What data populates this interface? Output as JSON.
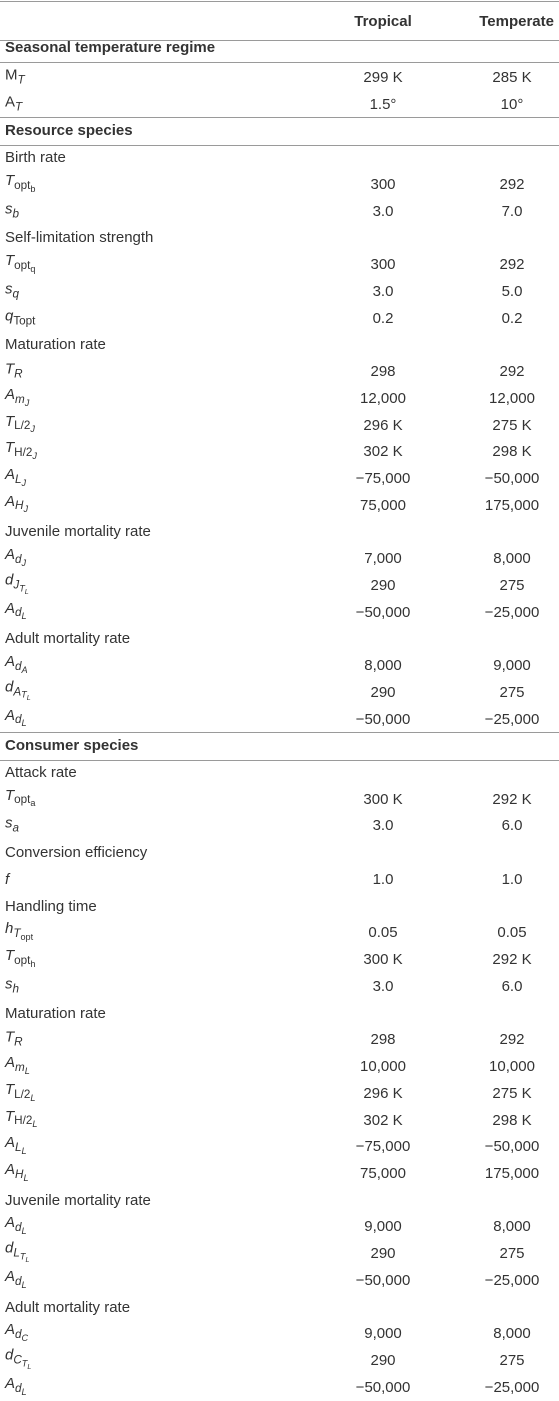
{
  "table": {
    "columns": [
      "Tropical",
      "Temperate"
    ],
    "rows": [
      {
        "section": "Seasonal temperature regime"
      },
      {
        "symbol": [
          "M",
          "T"
        ],
        "cells": [
          "299 K",
          "285 K"
        ]
      },
      {
        "symbol": [
          "A",
          "T"
        ],
        "cells": [
          "1.5°",
          "10°"
        ]
      },
      {
        "section": "Resource species"
      },
      {
        "group": "Birth rate"
      },
      {
        "symbol": [
          "T",
          "opt",
          "b"
        ],
        "cells": [
          "300",
          "292"
        ]
      },
      {
        "symbol": [
          "s",
          "b"
        ],
        "cells": [
          "3.0",
          "7.0"
        ]
      },
      {
        "group": "Self-limitation strength"
      },
      {
        "symbol": [
          "T",
          "opt",
          "q"
        ],
        "cells": [
          "300",
          "292"
        ]
      },
      {
        "symbol": [
          "s",
          "q"
        ],
        "cells": [
          "3.0",
          "5.0"
        ]
      },
      {
        "symbol": [
          "q",
          "Topt"
        ],
        "cells": [
          "0.2",
          "0.2"
        ]
      },
      {
        "group": "Maturation rate"
      },
      {
        "symbol": [
          "T",
          "R"
        ],
        "cells": [
          "298",
          "292"
        ]
      },
      {
        "symbol": [
          "A",
          "m",
          "J"
        ],
        "cells": [
          "12,000",
          "12,000"
        ]
      },
      {
        "symbol": [
          "T",
          "L/2",
          "J"
        ],
        "cells": [
          "296 K",
          "275 K"
        ]
      },
      {
        "symbol": [
          "T",
          "H/2",
          "J"
        ],
        "cells": [
          "302 K",
          "298 K"
        ]
      },
      {
        "symbol": [
          "A",
          "L",
          "J"
        ],
        "cells": [
          "−75,000",
          "−50,000"
        ]
      },
      {
        "symbol": [
          "A",
          "H",
          "J"
        ],
        "cells": [
          "75,000",
          "175,000"
        ]
      },
      {
        "group": "Juvenile mortality rate"
      },
      {
        "symbol": [
          "A",
          "d",
          "J"
        ],
        "cells": [
          "7,000",
          "8,000"
        ]
      },
      {
        "symbol": [
          "d",
          "J",
          "T",
          "L"
        ],
        "cells": [
          "290",
          "275"
        ]
      },
      {
        "symbol": [
          "A",
          "d",
          "L"
        ],
        "cells": [
          "−50,000",
          "−25,000"
        ]
      },
      {
        "group": "Adult mortality rate"
      },
      {
        "symbol": [
          "A",
          "d",
          "A"
        ],
        "cells": [
          "8,000",
          "9,000"
        ]
      },
      {
        "symbol": [
          "d",
          "A",
          "T",
          "L"
        ],
        "cells": [
          "290",
          "275"
        ]
      },
      {
        "symbol": [
          "A",
          "d",
          "L"
        ],
        "cells": [
          "−50,000",
          "−25,000"
        ]
      },
      {
        "section": "Consumer species"
      },
      {
        "group": "Attack rate"
      },
      {
        "symbol": [
          "T",
          "opt",
          "a"
        ],
        "cells": [
          "300 K",
          "292 K"
        ]
      },
      {
        "symbol": [
          "s",
          "a"
        ],
        "cells": [
          "3.0",
          "6.0"
        ]
      },
      {
        "group": "Conversion efficiency"
      },
      {
        "symbol": [
          "f"
        ],
        "cells": [
          "1.0",
          "1.0"
        ]
      },
      {
        "group": "Handling time"
      },
      {
        "symbol": [
          "h",
          "T",
          "opt"
        ],
        "cells": [
          "0.05",
          "0.05"
        ]
      },
      {
        "symbol": [
          "T",
          "opt",
          "h"
        ],
        "cells": [
          "300 K",
          "292 K"
        ]
      },
      {
        "symbol": [
          "s",
          "h"
        ],
        "cells": [
          "3.0",
          "6.0"
        ]
      },
      {
        "group": "Maturation rate"
      },
      {
        "symbol": [
          "T",
          "R"
        ],
        "cells": [
          "298",
          "292"
        ]
      },
      {
        "symbol": [
          "A",
          "m",
          "L"
        ],
        "cells": [
          "10,000",
          "10,000"
        ]
      },
      {
        "symbol": [
          "T",
          "L/2",
          "L"
        ],
        "cells": [
          "296 K",
          "275 K"
        ]
      },
      {
        "symbol": [
          "T",
          "H/2",
          "L"
        ],
        "cells": [
          "302 K",
          "298 K"
        ]
      },
      {
        "symbol": [
          "A",
          "L",
          "L"
        ],
        "cells": [
          "−75,000",
          "−50,000"
        ]
      },
      {
        "symbol": [
          "A",
          "H",
          "L"
        ],
        "cells": [
          "75,000",
          "175,000"
        ]
      },
      {
        "group": "Juvenile mortality rate"
      },
      {
        "symbol": [
          "A",
          "d",
          "L"
        ],
        "cells": [
          "9,000",
          "8,000"
        ]
      },
      {
        "symbol": [
          "d",
          "L",
          "T",
          "L"
        ],
        "cells": [
          "290",
          "275"
        ]
      },
      {
        "symbol": [
          "A",
          "d",
          "L"
        ],
        "cells": [
          "−50,000",
          "−25,000"
        ]
      },
      {
        "group": "Adult mortality rate"
      },
      {
        "symbol": [
          "A",
          "d",
          "C"
        ],
        "cells": [
          "9,000",
          "8,000"
        ]
      },
      {
        "symbol": [
          "d",
          "C",
          "T",
          "L"
        ],
        "cells": [
          "290",
          "275"
        ]
      },
      {
        "symbol": [
          "A",
          "d",
          "L"
        ],
        "cells": [
          "−50,000",
          "−25,000"
        ]
      }
    ]
  }
}
